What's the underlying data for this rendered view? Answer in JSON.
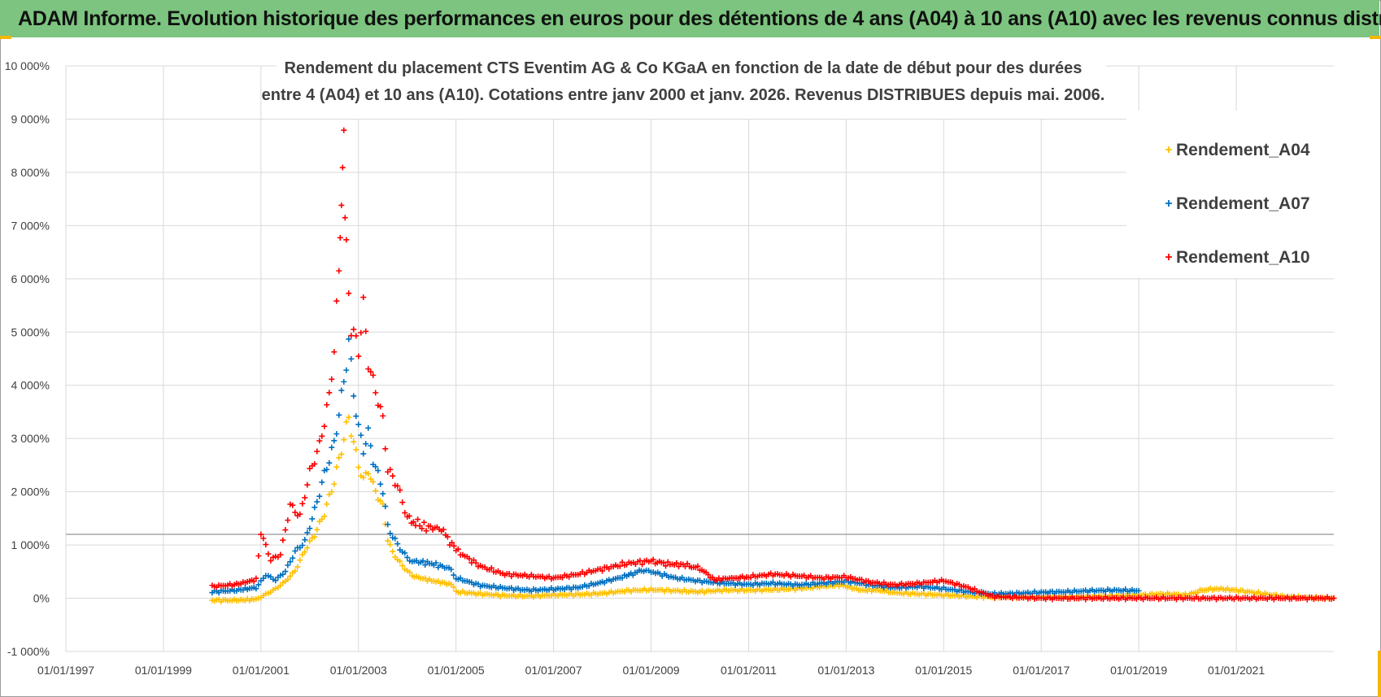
{
  "banner": {
    "title": "ADAM Informe. Evolution historique des performances en euros pour des détentions de 4 ans (A04) à 10 ans (A10) avec les revenus connus distribués",
    "background": "#7cc47f",
    "accent": "#f2b705"
  },
  "chart_data": {
    "type": "scatter",
    "title_lines": [
      "Rendement du placement CTS Eventim AG & Co KGaA en fonction de la date de début pour des durées",
      "entre 4 (A04) et 10 ans (A10).  Cotations entre janv 2000 et janv. 2026. Revenus DISTRIBUES depuis mai. 2006."
    ],
    "xlabel": "",
    "ylabel": "",
    "x_tick_labels": [
      "01/01/1997",
      "01/01/1999",
      "01/01/2001",
      "01/01/2003",
      "01/01/2005",
      "01/01/2007",
      "01/01/2009",
      "01/01/2011",
      "01/01/2013",
      "01/01/2015",
      "01/01/2017",
      "01/01/2019",
      "01/01/2021"
    ],
    "y_tick_labels": [
      "-1 000%",
      "0%",
      "1 000%",
      "2 000%",
      "3 000%",
      "4 000%",
      "5 000%",
      "6 000%",
      "7 000%",
      "8 000%",
      "9 000%",
      "10 000%"
    ],
    "ylim": [
      -1000,
      10000
    ],
    "xlim": [
      1997.0,
      2023.0
    ],
    "grid": true,
    "reference_line_y": 1200,
    "legend_position": "top-right",
    "marker": "+",
    "series": [
      {
        "name": "Rendement_A04",
        "color": "#ffc000",
        "points": [
          [
            2000.0,
            -40
          ],
          [
            2000.5,
            -40
          ],
          [
            2000.9,
            -20
          ],
          [
            2001.1,
            80
          ],
          [
            2001.3,
            180
          ],
          [
            2001.5,
            320
          ],
          [
            2001.7,
            520
          ],
          [
            2001.9,
            900
          ],
          [
            2002.1,
            1200
          ],
          [
            2002.3,
            1600
          ],
          [
            2002.5,
            2200
          ],
          [
            2002.6,
            2600
          ],
          [
            2002.7,
            3000
          ],
          [
            2002.8,
            3400
          ],
          [
            2002.9,
            2900
          ],
          [
            2003.0,
            2500
          ],
          [
            2003.1,
            2200
          ],
          [
            2003.2,
            2400
          ],
          [
            2003.3,
            2100
          ],
          [
            2003.4,
            1900
          ],
          [
            2003.5,
            1700
          ],
          [
            2003.6,
            1100
          ],
          [
            2003.7,
            850
          ],
          [
            2003.9,
            600
          ],
          [
            2004.1,
            420
          ],
          [
            2004.5,
            330
          ],
          [
            2004.9,
            260
          ],
          [
            2005.0,
            120
          ],
          [
            2005.5,
            80
          ],
          [
            2006.0,
            50
          ],
          [
            2006.5,
            40
          ],
          [
            2007.0,
            60
          ],
          [
            2007.5,
            70
          ],
          [
            2008.0,
            90
          ],
          [
            2008.5,
            140
          ],
          [
            2009.0,
            160
          ],
          [
            2009.5,
            140
          ],
          [
            2010.0,
            120
          ],
          [
            2010.5,
            150
          ],
          [
            2011.0,
            150
          ],
          [
            2011.5,
            160
          ],
          [
            2012.0,
            180
          ],
          [
            2012.5,
            220
          ],
          [
            2012.9,
            250
          ],
          [
            2013.3,
            150
          ],
          [
            2013.7,
            150
          ],
          [
            2014.0,
            100
          ],
          [
            2014.5,
            80
          ],
          [
            2015.0,
            60
          ],
          [
            2015.5,
            40
          ],
          [
            2016.0,
            20
          ],
          [
            2017.0,
            20
          ],
          [
            2018.0,
            30
          ],
          [
            2019.0,
            60
          ],
          [
            2019.5,
            80
          ],
          [
            2020.0,
            60
          ],
          [
            2020.3,
            150
          ],
          [
            2020.6,
            180
          ],
          [
            2021.0,
            150
          ],
          [
            2021.5,
            90
          ],
          [
            2022.0,
            30
          ],
          [
            2022.5,
            10
          ],
          [
            2023.0,
            0
          ]
        ]
      },
      {
        "name": "Rendement_A07",
        "color": "#0070c0",
        "points": [
          [
            2000.0,
            120
          ],
          [
            2000.5,
            150
          ],
          [
            2000.9,
            200
          ],
          [
            2001.1,
            450
          ],
          [
            2001.3,
            350
          ],
          [
            2001.5,
            520
          ],
          [
            2001.7,
            900
          ],
          [
            2001.9,
            1100
          ],
          [
            2002.1,
            1700
          ],
          [
            2002.3,
            2400
          ],
          [
            2002.5,
            3000
          ],
          [
            2002.6,
            3600
          ],
          [
            2002.7,
            4200
          ],
          [
            2002.8,
            5000
          ],
          [
            2002.9,
            4000
          ],
          [
            2003.0,
            3300
          ],
          [
            2003.1,
            2900
          ],
          [
            2003.2,
            3200
          ],
          [
            2003.3,
            2700
          ],
          [
            2003.4,
            2400
          ],
          [
            2003.5,
            2100
          ],
          [
            2003.6,
            1400
          ],
          [
            2003.7,
            1200
          ],
          [
            2003.9,
            900
          ],
          [
            2004.1,
            700
          ],
          [
            2004.5,
            650
          ],
          [
            2004.9,
            550
          ],
          [
            2005.0,
            380
          ],
          [
            2005.5,
            240
          ],
          [
            2006.0,
            190
          ],
          [
            2006.5,
            150
          ],
          [
            2007.0,
            170
          ],
          [
            2007.5,
            200
          ],
          [
            2008.0,
            300
          ],
          [
            2008.5,
            420
          ],
          [
            2008.8,
            520
          ],
          [
            2009.0,
            500
          ],
          [
            2009.5,
            380
          ],
          [
            2010.0,
            320
          ],
          [
            2010.5,
            280
          ],
          [
            2011.0,
            260
          ],
          [
            2011.5,
            280
          ],
          [
            2012.0,
            250
          ],
          [
            2012.5,
            280
          ],
          [
            2013.0,
            320
          ],
          [
            2013.5,
            250
          ],
          [
            2014.0,
            200
          ],
          [
            2014.5,
            220
          ],
          [
            2015.0,
            180
          ],
          [
            2015.5,
            120
          ],
          [
            2016.0,
            80
          ],
          [
            2016.5,
            90
          ],
          [
            2017.0,
            110
          ],
          [
            2017.5,
            120
          ],
          [
            2018.0,
            140
          ],
          [
            2018.5,
            150
          ],
          [
            2019.0,
            140
          ]
        ]
      },
      {
        "name": "Rendement_A10",
        "color": "#ff0000",
        "points": [
          [
            2000.0,
            220
          ],
          [
            2000.5,
            260
          ],
          [
            2000.9,
            350
          ],
          [
            2001.0,
            1200
          ],
          [
            2001.2,
            700
          ],
          [
            2001.4,
            800
          ],
          [
            2001.6,
            1700
          ],
          [
            2001.8,
            1500
          ],
          [
            2002.0,
            2300
          ],
          [
            2002.2,
            2800
          ],
          [
            2002.4,
            3700
          ],
          [
            2002.5,
            4600
          ],
          [
            2002.6,
            6000
          ],
          [
            2002.65,
            7500
          ],
          [
            2002.7,
            8600
          ],
          [
            2002.75,
            6400
          ],
          [
            2002.85,
            5000
          ],
          [
            2003.0,
            4600
          ],
          [
            2003.1,
            5400
          ],
          [
            2003.2,
            4400
          ],
          [
            2003.3,
            4000
          ],
          [
            2003.4,
            3700
          ],
          [
            2003.5,
            3300
          ],
          [
            2003.6,
            2400
          ],
          [
            2003.8,
            2100
          ],
          [
            2004.0,
            1500
          ],
          [
            2004.3,
            1350
          ],
          [
            2004.7,
            1300
          ],
          [
            2005.0,
            900
          ],
          [
            2005.5,
            600
          ],
          [
            2006.0,
            450
          ],
          [
            2006.5,
            420
          ],
          [
            2007.0,
            380
          ],
          [
            2007.5,
            450
          ],
          [
            2008.0,
            550
          ],
          [
            2008.5,
            650
          ],
          [
            2009.0,
            700
          ],
          [
            2009.3,
            650
          ],
          [
            2009.7,
            620
          ],
          [
            2010.0,
            560
          ],
          [
            2010.3,
            350
          ],
          [
            2010.7,
            380
          ],
          [
            2011.0,
            400
          ],
          [
            2011.5,
            450
          ],
          [
            2012.0,
            420
          ],
          [
            2012.5,
            380
          ],
          [
            2013.0,
            400
          ],
          [
            2013.5,
            300
          ],
          [
            2014.0,
            250
          ],
          [
            2014.5,
            280
          ],
          [
            2015.0,
            330
          ],
          [
            2015.5,
            200
          ],
          [
            2016.0,
            30
          ],
          [
            2017.0,
            0
          ],
          [
            2018.0,
            0
          ],
          [
            2019.0,
            0
          ],
          [
            2020.0,
            0
          ],
          [
            2021.0,
            0
          ],
          [
            2022.0,
            0
          ],
          [
            2023.0,
            0
          ]
        ]
      }
    ]
  }
}
